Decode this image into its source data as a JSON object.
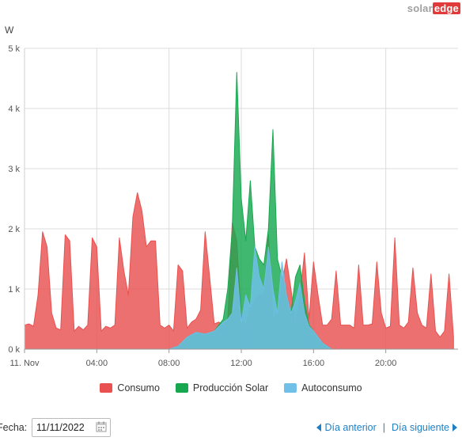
{
  "brand": {
    "part1": "solar",
    "part2": "edge"
  },
  "chart_data": {
    "type": "area",
    "ylabel": "W",
    "ylim": [
      0,
      5000
    ],
    "xlim_hours": [
      0,
      24
    ],
    "y_ticks": [
      "0 k",
      "1 k",
      "2 k",
      "3 k",
      "4 k",
      "5 k"
    ],
    "x_ticks": [
      "11. Nov",
      "04:00",
      "08:00",
      "12:00",
      "16:00",
      "20:00"
    ],
    "grid": true,
    "legend_position": "bottom",
    "series": [
      {
        "name": "Consumo",
        "color": "#e8514f",
        "x": [
          0,
          0.25,
          0.5,
          0.75,
          1.0,
          1.25,
          1.5,
          1.75,
          2.0,
          2.25,
          2.5,
          2.75,
          3.0,
          3.25,
          3.5,
          3.75,
          4.0,
          4.25,
          4.5,
          4.75,
          5.0,
          5.25,
          5.5,
          5.75,
          6.0,
          6.25,
          6.5,
          6.75,
          7.0,
          7.25,
          7.5,
          7.75,
          8.0,
          8.25,
          8.5,
          8.75,
          9.0,
          9.25,
          9.5,
          9.75,
          10.0,
          10.25,
          10.5,
          10.75,
          11.0,
          11.25,
          11.5,
          11.75,
          12.0,
          12.25,
          12.5,
          12.75,
          13.0,
          13.25,
          13.5,
          13.75,
          14.0,
          14.25,
          14.5,
          14.75,
          15.0,
          15.25,
          15.5,
          15.75,
          16.0,
          16.25,
          16.5,
          16.75,
          17.0,
          17.25,
          17.5,
          17.75,
          18.0,
          18.25,
          18.5,
          18.75,
          19.0,
          19.25,
          19.5,
          19.75,
          20.0,
          20.25,
          20.5,
          20.75,
          21.0,
          21.25,
          21.5,
          21.75,
          22.0,
          22.25,
          22.5,
          22.75,
          23.0,
          23.25,
          23.5,
          23.75
        ],
        "values": [
          400,
          420,
          380,
          900,
          1950,
          1700,
          600,
          350,
          320,
          1900,
          1800,
          300,
          380,
          320,
          400,
          1850,
          1700,
          300,
          380,
          350,
          400,
          1850,
          1300,
          900,
          2200,
          2600,
          2300,
          1700,
          1800,
          1800,
          400,
          350,
          400,
          300,
          1400,
          1300,
          350,
          450,
          500,
          650,
          1950,
          1200,
          420,
          450,
          400,
          500,
          2100,
          1800,
          500,
          400,
          700,
          800,
          900,
          900,
          1900,
          500,
          600,
          1100,
          1500,
          1000,
          400,
          900,
          1600,
          500,
          1450,
          900,
          400,
          400,
          500,
          1300,
          400,
          400,
          400,
          350,
          1400,
          400,
          400,
          420,
          1450,
          600,
          350,
          380,
          1850,
          400,
          350,
          450,
          1350,
          600,
          400,
          350,
          1250,
          300,
          200,
          300,
          1250,
          200
        ],
        "points_note": ""
      },
      {
        "name": "Producción Solar",
        "color": "#17a84f",
        "x": [
          8.0,
          8.5,
          9.0,
          9.5,
          10.0,
          10.5,
          11.0,
          11.25,
          11.5,
          11.75,
          12.0,
          12.25,
          12.5,
          12.75,
          13.0,
          13.25,
          13.5,
          13.75,
          14.0,
          14.25,
          14.5,
          14.75,
          15.0,
          15.25,
          15.5,
          15.75,
          16.0,
          16.25,
          16.5,
          16.75,
          17.0,
          17.5,
          18.0
        ],
        "values": [
          0,
          50,
          200,
          280,
          250,
          300,
          500,
          1000,
          2000,
          4600,
          2500,
          1800,
          2800,
          1700,
          1500,
          1400,
          2000,
          3650,
          1500,
          1200,
          900,
          600,
          1200,
          1400,
          800,
          400,
          300,
          200,
          100,
          50,
          0,
          0,
          0
        ]
      },
      {
        "name": "Autoconsumo",
        "color": "#6fbfe8",
        "x": [
          8.0,
          8.5,
          9.0,
          9.5,
          10.0,
          10.5,
          11.0,
          11.25,
          11.5,
          11.75,
          12.0,
          12.25,
          12.5,
          12.75,
          13.0,
          13.25,
          13.5,
          13.75,
          14.0,
          14.25,
          14.5,
          14.75,
          15.0,
          15.25,
          15.5,
          15.75,
          16.0,
          16.25,
          16.5,
          16.75,
          17.0,
          17.5,
          18.0
        ],
        "values": [
          0,
          50,
          200,
          280,
          250,
          300,
          450,
          500,
          600,
          1350,
          450,
          900,
          700,
          1700,
          1200,
          1000,
          1700,
          1000,
          600,
          1450,
          900,
          600,
          800,
          1100,
          600,
          380,
          300,
          200,
          100,
          50,
          0,
          0,
          0
        ]
      }
    ]
  },
  "legend": [
    {
      "label": "Consumo",
      "color": "#e8514f"
    },
    {
      "label": "Producción Solar",
      "color": "#17a84f"
    },
    {
      "label": "Autoconsumo",
      "color": "#6fbfe8"
    }
  ],
  "controls": {
    "date_label": "Fecha:",
    "date_value": "11/11/2022",
    "prev_label": "Día anterior",
    "separator": "|",
    "next_label": "Día siguiente"
  }
}
